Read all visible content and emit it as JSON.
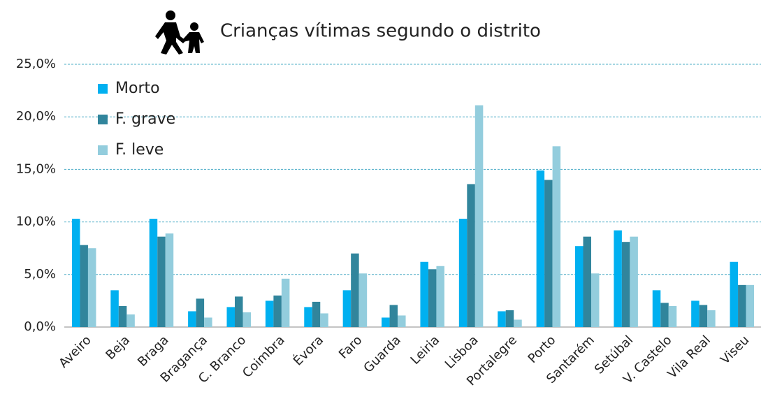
{
  "chart_data": {
    "type": "bar",
    "title": "Crianças vítimas segundo o distrito",
    "categories": [
      "Aveiro",
      "Beja",
      "Braga",
      "Bragança",
      "C. Branco",
      "Coimbra",
      "Évora",
      "Faro",
      "Guarda",
      "Leiria",
      "Lisboa",
      "Portalegre",
      "Porto",
      "Santarém",
      "Setúbal",
      "V. Castelo",
      "Vila Real",
      "Viseu"
    ],
    "series": [
      {
        "name": "Morto",
        "color": "#00b0f0",
        "values": [
          10.3,
          3.5,
          10.3,
          1.5,
          1.9,
          2.5,
          1.9,
          3.5,
          0.9,
          6.2,
          10.3,
          1.5,
          14.9,
          7.7,
          9.2,
          3.5,
          2.5,
          6.2
        ]
      },
      {
        "name": "F. grave",
        "color": "#31859c",
        "values": [
          7.8,
          2.0,
          8.6,
          2.7,
          2.9,
          3.0,
          2.4,
          7.0,
          2.1,
          5.5,
          13.6,
          1.6,
          14.0,
          8.6,
          8.1,
          2.3,
          2.1,
          4.0
        ]
      },
      {
        "name": "F. leve",
        "color": "#93cddd",
        "values": [
          7.5,
          1.2,
          8.9,
          0.9,
          1.4,
          4.6,
          1.3,
          5.1,
          1.1,
          5.8,
          21.1,
          0.7,
          17.2,
          5.1,
          8.6,
          2.0,
          1.6,
          4.0
        ]
      }
    ],
    "ylim": [
      0,
      25
    ],
    "yticks": [
      {
        "value": 0,
        "label": "0,0%"
      },
      {
        "value": 5,
        "label": "5,0%"
      },
      {
        "value": 10,
        "label": "10,0%"
      },
      {
        "value": 15,
        "label": "15,0%"
      },
      {
        "value": 20,
        "label": "20,0%"
      },
      {
        "value": 25,
        "label": "25,0%"
      }
    ],
    "grid": true,
    "legend": "top-left"
  }
}
